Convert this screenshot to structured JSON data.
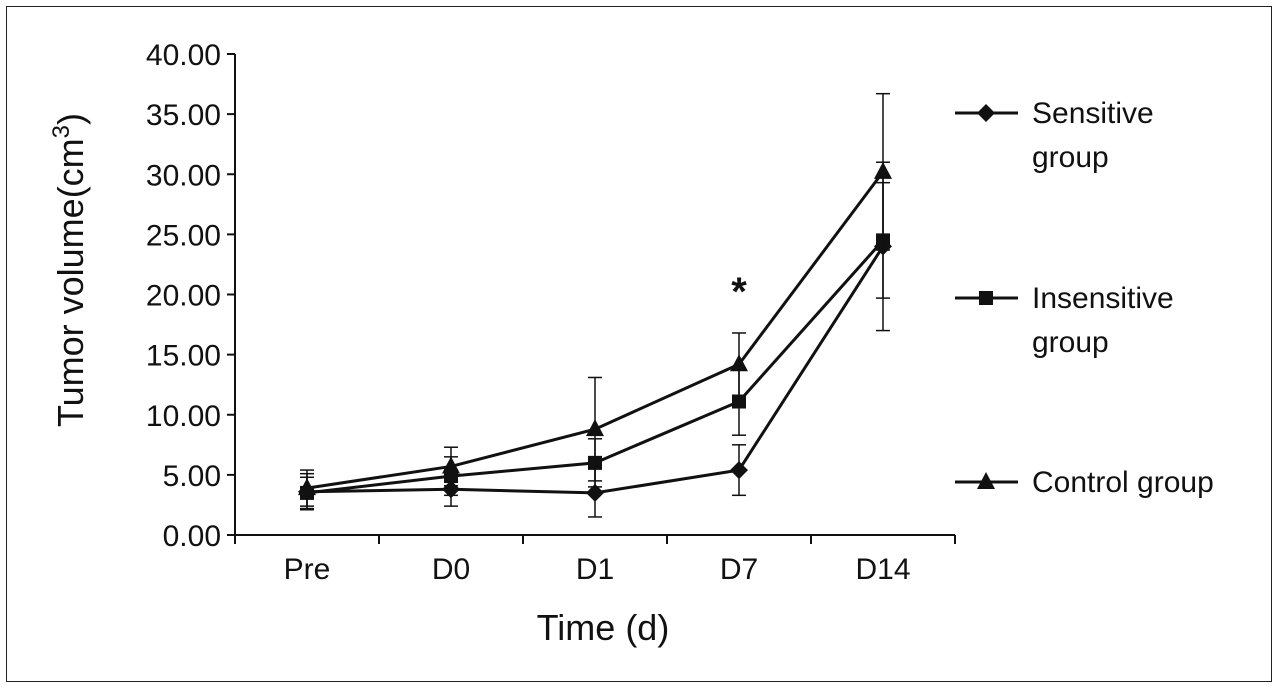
{
  "chart_data": {
    "type": "line",
    "xlabel": "Time (d)",
    "ylabel": "Tumor volume(cm",
    "ylabel_superscript": "3",
    "ylabel_close": ")",
    "categories": [
      "Pre",
      "D0",
      "D1",
      "D7",
      "D14"
    ],
    "ylim": [
      0,
      40
    ],
    "yticks": [
      "0.00",
      "5.00",
      "10.00",
      "15.00",
      "20.00",
      "25.00",
      "30.00",
      "35.00",
      "40.00"
    ],
    "grid": false,
    "legend_position": "right",
    "annotation": "*",
    "annotation_category": "D7",
    "series": [
      {
        "name_line1": "Sensitive",
        "name_line2": "group",
        "marker": "diamond",
        "values": [
          3.6,
          3.8,
          3.5,
          5.4,
          24.0
        ],
        "errors": [
          1.5,
          1.4,
          2.0,
          2.1,
          7.0
        ]
      },
      {
        "name_line1": "Insensitive",
        "name_line2": "group",
        "marker": "square",
        "values": [
          3.5,
          4.9,
          6.0,
          11.1,
          24.5
        ],
        "errors": [
          1.3,
          1.6,
          2.0,
          2.8,
          4.8
        ]
      },
      {
        "name_line1": "Control group",
        "name_line2": "",
        "marker": "triangle",
        "values": [
          3.9,
          5.7,
          8.8,
          14.2,
          30.2
        ],
        "errors": [
          1.5,
          1.6,
          4.3,
          2.6,
          6.5
        ]
      }
    ]
  }
}
